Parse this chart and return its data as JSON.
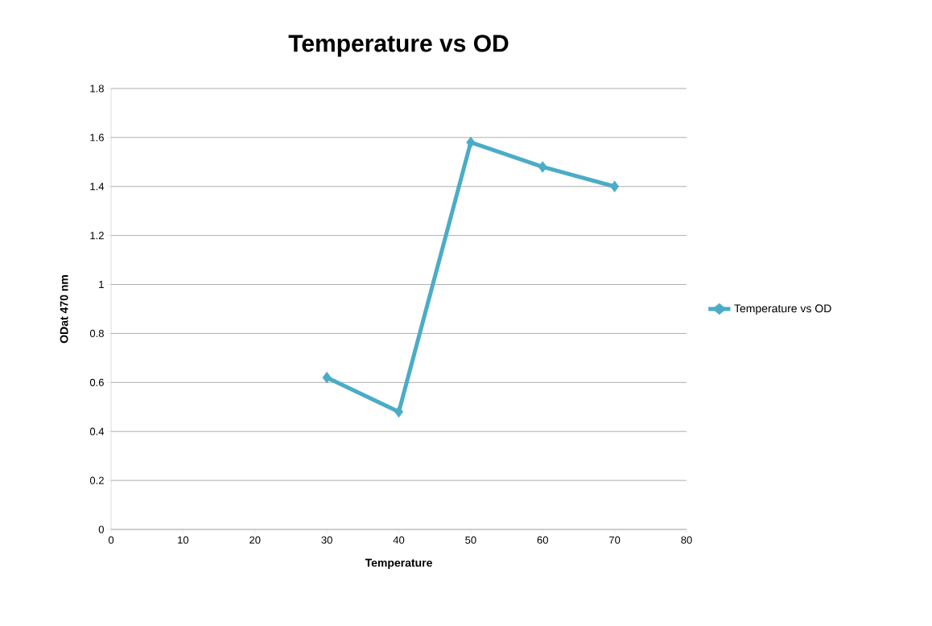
{
  "chart_data": {
    "type": "line",
    "title": "Temperature vs OD",
    "xlabel": "Temperature",
    "ylabel": "ODat 470 nm",
    "x": [
      30,
      40,
      50,
      60,
      70
    ],
    "series": [
      {
        "name": "Temperature vs OD",
        "color": "#4bacc6",
        "values": [
          0.62,
          0.48,
          1.58,
          1.48,
          1.4
        ]
      }
    ],
    "xlim": [
      0,
      80
    ],
    "xticks": [
      0,
      10,
      20,
      30,
      40,
      50,
      60,
      70,
      80
    ],
    "ylim": [
      0,
      1.8
    ],
    "yticks": [
      0,
      0.2,
      0.4,
      0.6,
      0.8,
      1,
      1.2,
      1.4,
      1.6,
      1.8
    ],
    "grid": "y",
    "legend": "right",
    "marker": "diamond",
    "line_style": "solid"
  }
}
